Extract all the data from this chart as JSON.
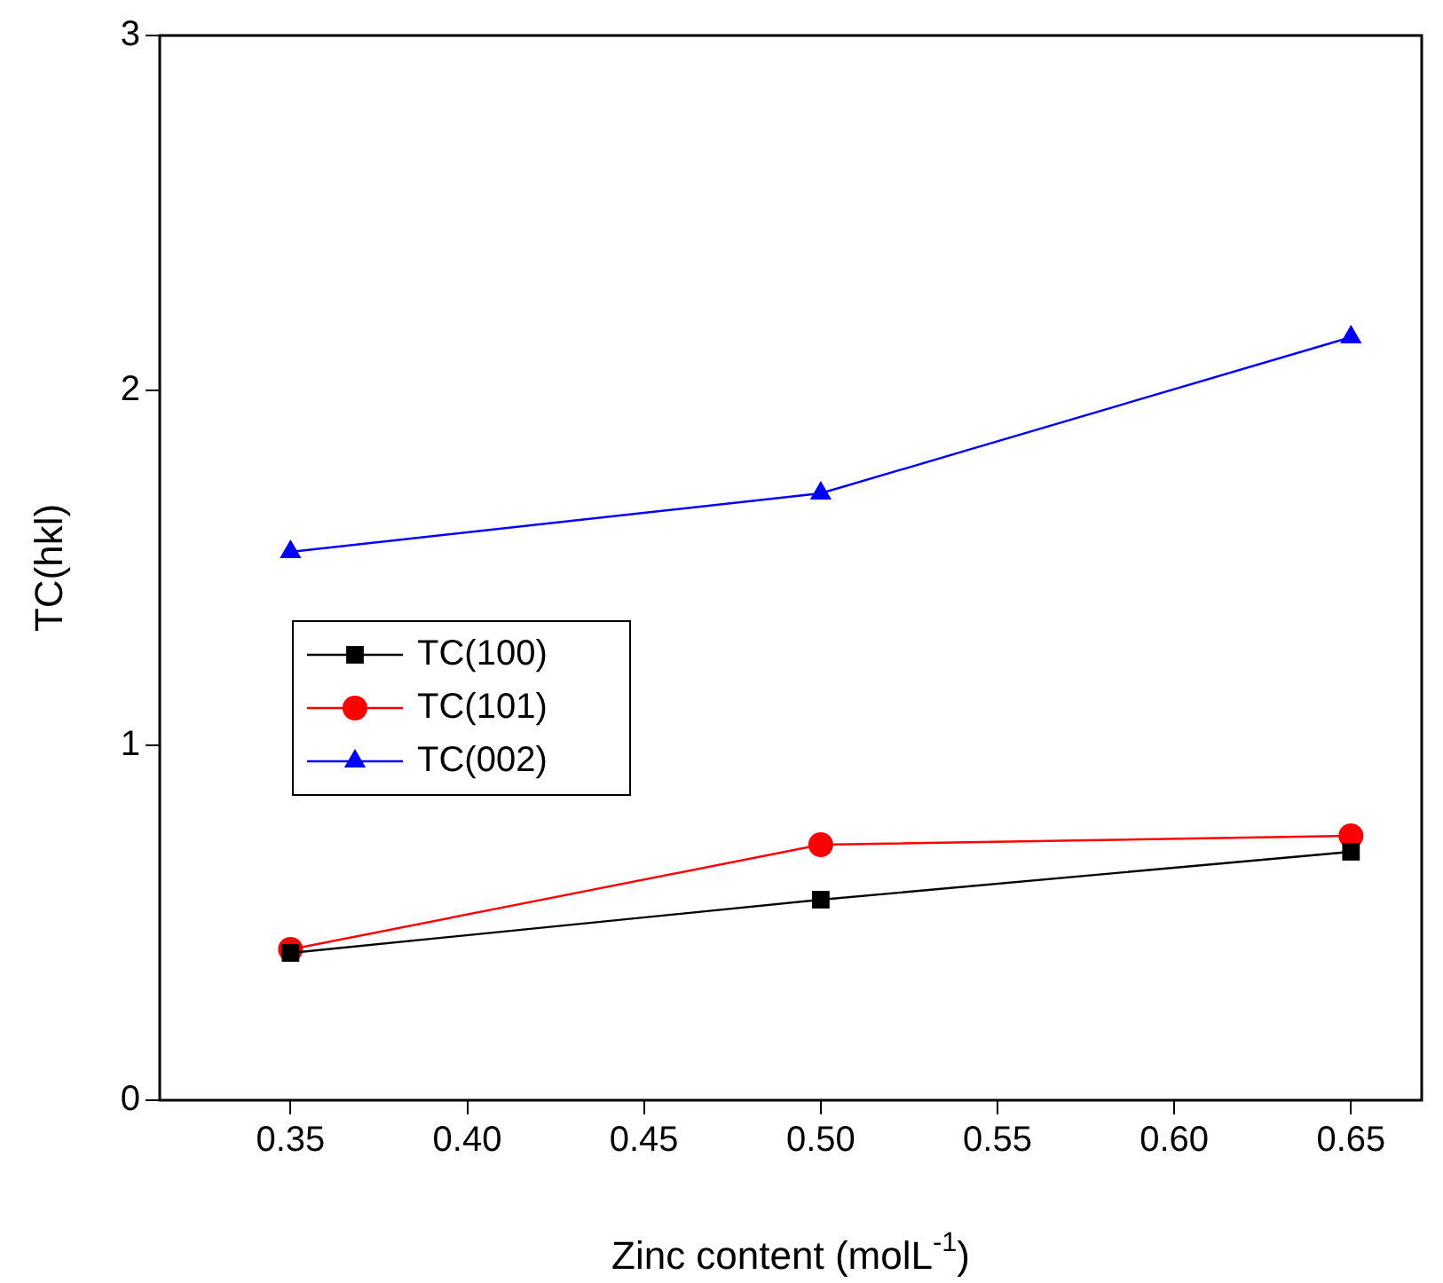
{
  "chart_data": {
    "type": "line",
    "xlabel": "Zinc content (molL$^{-1}$)",
    "ylabel": "TC(hkl)",
    "x": [
      0.35,
      0.5,
      0.65
    ],
    "series": [
      {
        "name": "TC(100)",
        "color": "#000000",
        "marker": "square",
        "values": [
          0.415,
          0.565,
          0.7
        ]
      },
      {
        "name": "TC(101)",
        "color": "#ff0000",
        "marker": "circle",
        "values": [
          0.425,
          0.72,
          0.745
        ]
      },
      {
        "name": "TC(002)",
        "color": "#0000ff",
        "marker": "triangle",
        "values": [
          1.545,
          1.71,
          2.15
        ]
      }
    ],
    "xlim": [
      0.313,
      0.67
    ],
    "xticks": [
      {
        "value": 0.35,
        "label": "0.35"
      },
      {
        "value": 0.4,
        "label": "0.40"
      },
      {
        "value": 0.45,
        "label": "0.45"
      },
      {
        "value": 0.5,
        "label": "0.50"
      },
      {
        "value": 0.55,
        "label": "0.55"
      },
      {
        "value": 0.6,
        "label": "0.60"
      },
      {
        "value": 0.65,
        "label": "0.65"
      }
    ],
    "ylim": [
      0,
      3
    ],
    "yticks": [
      0,
      1,
      2,
      3
    ],
    "grid": false,
    "legend": "left",
    "line_style": "solid"
  }
}
